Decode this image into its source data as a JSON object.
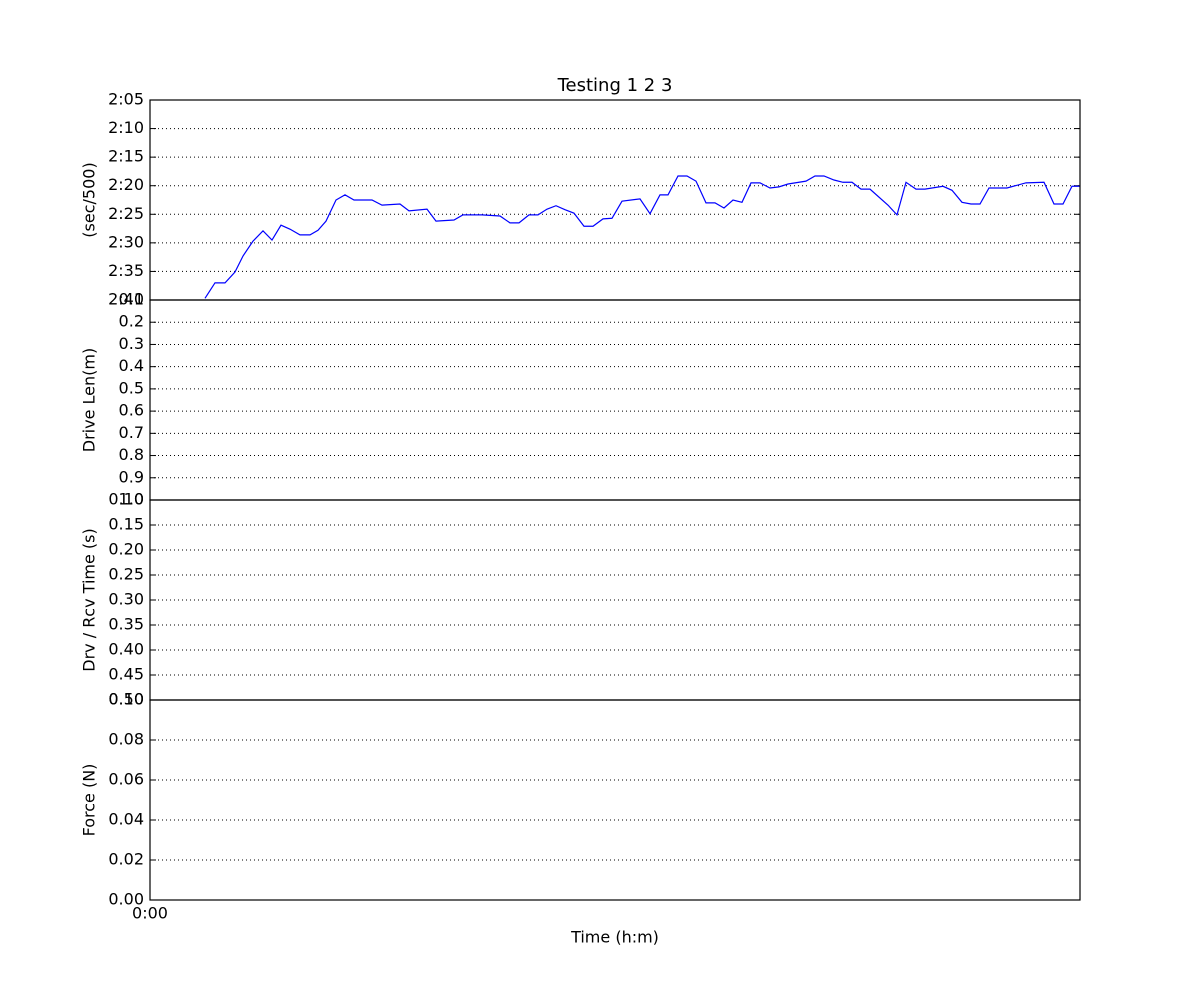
{
  "chart_data": [
    {
      "type": "line",
      "title": "Testing 1 2 3",
      "ylabel": "(sec/500)",
      "x": [
        5.5,
        6.5,
        7.5,
        8.5,
        9.3,
        10.3,
        11.3,
        12.2,
        13.1,
        14.0,
        15.0,
        16.0,
        16.8,
        17.6,
        18.6,
        19.5,
        20.4,
        22.2,
        23.2,
        25.0,
        25.9,
        27.7,
        28.6,
        30.4,
        31.3,
        33.2,
        35.0,
        36.0,
        36.9,
        37.9,
        38.8,
        39.7,
        40.6,
        41.5,
        42.4,
        43.4,
        44.3,
        45.3,
        46.2,
        47.2,
        49.0,
        50.0,
        51.0,
        51.8,
        52.8,
        53.7,
        54.6,
        55.6,
        56.5,
        57.4,
        58.3,
        59.2,
        60.1,
        61.0,
        62.0,
        62.9,
        63.8,
        65.6,
        66.5,
        67.4,
        68.4,
        69.3,
        70.2,
        71.1,
        72.0,
        73.8,
        74.7,
        75.6,
        76.6,
        77.5,
        79.3,
        80.2,
        81.2,
        82.1,
        83.0,
        83.9,
        85.7,
        87.6,
        89.4,
        90.4,
        91.3,
        92.2,
        93.0
      ],
      "series": [
        {
          "color": "#0000ff",
          "values": [
            159.7,
            157.0,
            157.0,
            155.1,
            152.3,
            149.7,
            147.9,
            149.5,
            146.9,
            147.6,
            148.6,
            148.6,
            147.8,
            146.2,
            142.5,
            141.6,
            142.5,
            142.5,
            143.4,
            143.2,
            144.4,
            144.1,
            146.2,
            146.0,
            145.1,
            145.1,
            145.3,
            146.5,
            146.5,
            145.1,
            145.1,
            144.1,
            143.5,
            144.2,
            144.8,
            147.1,
            147.1,
            145.8,
            145.7,
            142.7,
            142.3,
            144.9,
            141.6,
            141.6,
            138.3,
            138.3,
            139.2,
            143.0,
            143.0,
            143.9,
            142.5,
            142.9,
            139.5,
            139.5,
            140.4,
            140.2,
            139.7,
            139.2,
            138.3,
            138.3,
            139.0,
            139.4,
            139.4,
            140.6,
            140.6,
            143.4,
            145.1,
            139.4,
            140.6,
            140.6,
            140.1,
            140.8,
            142.9,
            143.2,
            143.2,
            140.4,
            140.4,
            139.5,
            139.4,
            143.2,
            143.2,
            140.1,
            140.1
          ]
        }
      ],
      "xlim": [
        0,
        93
      ],
      "ylim": [
        160,
        125
      ],
      "grid": true,
      "yticks": [
        {
          "value": 125,
          "label": "2:05"
        },
        {
          "value": 130,
          "label": "2:10"
        },
        {
          "value": 135,
          "label": "2:15"
        },
        {
          "value": 140,
          "label": "2:20"
        },
        {
          "value": 145,
          "label": "2:25"
        },
        {
          "value": 150,
          "label": "2:30"
        },
        {
          "value": 155,
          "label": "2:35"
        },
        {
          "value": 160,
          "label": "2:40"
        }
      ]
    },
    {
      "type": "line",
      "ylabel": "Drive Len(m)",
      "xlim": [
        0,
        93
      ],
      "ylim": [
        1,
        0.1
      ],
      "grid": true,
      "yticks": [
        0.1,
        0.2,
        0.3,
        0.4,
        0.5,
        0.6,
        0.7,
        0.8,
        0.9,
        {
          "value": 1,
          "label": "1.0"
        }
      ]
    },
    {
      "type": "line",
      "ylabel": "Drv / Rcv Time (s)",
      "xlim": [
        0,
        93
      ],
      "ylim": [
        0.5,
        0.1
      ],
      "grid": true,
      "yticks": [
        {
          "value": 0.1,
          "label": "0.10"
        },
        {
          "value": 0.15,
          "label": "0.15"
        },
        {
          "value": 0.2,
          "label": "0.20"
        },
        {
          "value": 0.25,
          "label": "0.25"
        },
        {
          "value": 0.3,
          "label": "0.30"
        },
        {
          "value": 0.35,
          "label": "0.35"
        },
        {
          "value": 0.4,
          "label": "0.40"
        },
        {
          "value": 0.45,
          "label": "0.45"
        },
        {
          "value": 0.5,
          "label": "0.50"
        }
      ]
    },
    {
      "type": "line",
      "ylabel": "Force (N)",
      "xlabel": "Time (h:m)",
      "xlim": [
        0,
        93
      ],
      "ylim": [
        0,
        0.1
      ],
      "grid": true,
      "xticks": [
        {
          "value": 0,
          "label": "0:00"
        }
      ],
      "yticks": [
        {
          "value": 0,
          "label": "0.00"
        },
        {
          "value": 0.02,
          "label": "0.02"
        },
        {
          "value": 0.04,
          "label": "0.04"
        },
        {
          "value": 0.06,
          "label": "0.06"
        },
        {
          "value": 0.08,
          "label": "0.08"
        },
        {
          "value": 0.1,
          "label": "0.10"
        }
      ]
    }
  ]
}
